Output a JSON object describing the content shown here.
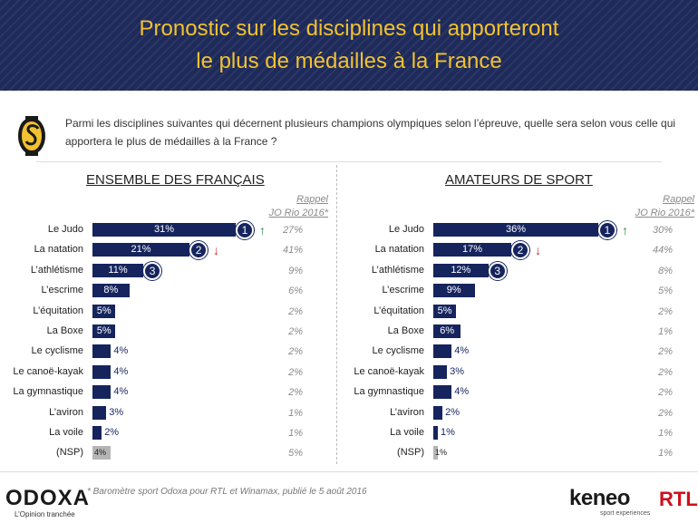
{
  "header": {
    "title_line1": "Pronostic sur les disciplines qui apporteront",
    "title_line2": "le plus de médailles à la France"
  },
  "question": "Parmi les disciplines suivantes qui décernent plusieurs champions olympiques selon l’épreuve, quelle sera selon vous celle qui apportera le plus de médailles à la France ?",
  "rappel_line1": "Rappel",
  "rappel_line2": "JO Rio 2016*",
  "colors": {
    "bar": "#16245e",
    "nsp": "#b5b5b5",
    "title": "#f2c230",
    "up": "#2e8b3e",
    "down": "#d4262a"
  },
  "chart_data": [
    {
      "type": "bar",
      "orientation": "horizontal",
      "title": "ENSEMBLE DES FRANÇAIS",
      "categories": [
        "Le Judo",
        "La natation",
        "L’athlétisme",
        "L’escrime",
        "L’équitation",
        "La Boxe",
        "Le cyclisme",
        "Le canoë-kayak",
        "La gymnastique",
        "L’aviron",
        "La voile",
        "(NSP)"
      ],
      "values": [
        31,
        21,
        11,
        8,
        5,
        5,
        4,
        4,
        4,
        3,
        2,
        4
      ],
      "labels": [
        "31%",
        "21%",
        "11%",
        "8%",
        "5%",
        "5%",
        "4%",
        "4%",
        "4%",
        "3%",
        "2%",
        "4%"
      ],
      "ranks": [
        {
          "index": 0,
          "rank": "1",
          "trend": "up"
        },
        {
          "index": 1,
          "rank": "2",
          "trend": "down"
        },
        {
          "index": 2,
          "rank": "3",
          "trend": ""
        }
      ],
      "rio_2016": [
        "27%",
        "41%",
        "9%",
        "6%",
        "2%",
        "2%",
        "2%",
        "2%",
        "2%",
        "1%",
        "1%",
        "5%"
      ],
      "xlim": [
        0,
        31
      ]
    },
    {
      "type": "bar",
      "orientation": "horizontal",
      "title": "AMATEURS DE SPORT",
      "categories": [
        "Le Judo",
        "La natation",
        "L’athlétisme",
        "L’escrime",
        "L’équitation",
        "La Boxe",
        "Le cyclisme",
        "Le canoë-kayak",
        "La gymnastique",
        "L’aviron",
        "La voile",
        "(NSP)"
      ],
      "values": [
        36,
        17,
        12,
        9,
        5,
        6,
        4,
        3,
        4,
        2,
        1,
        1
      ],
      "labels": [
        "36%",
        "17%",
        "12%",
        "9%",
        "5%",
        "6%",
        "4%",
        "3%",
        "4%",
        "2%",
        "1%",
        "1%"
      ],
      "ranks": [
        {
          "index": 0,
          "rank": "1",
          "trend": "up"
        },
        {
          "index": 1,
          "rank": "2",
          "trend": "down"
        },
        {
          "index": 2,
          "rank": "3",
          "trend": ""
        }
      ],
      "rio_2016": [
        "30%",
        "44%",
        "8%",
        "5%",
        "2%",
        "1%",
        "2%",
        "2%",
        "2%",
        "2%",
        "1%",
        "1%"
      ],
      "xlim": [
        0,
        36
      ]
    }
  ],
  "footer": {
    "odoxa": "ODOXA",
    "odoxa_tagline": "L’Opinion tranchée",
    "source": "* Baromètre sport Odoxa pour RTL et Winamax, publié le 5 août 2016",
    "keneo": "keneo",
    "keneo_tagline": "sport experiences",
    "rtl": "RTL"
  }
}
